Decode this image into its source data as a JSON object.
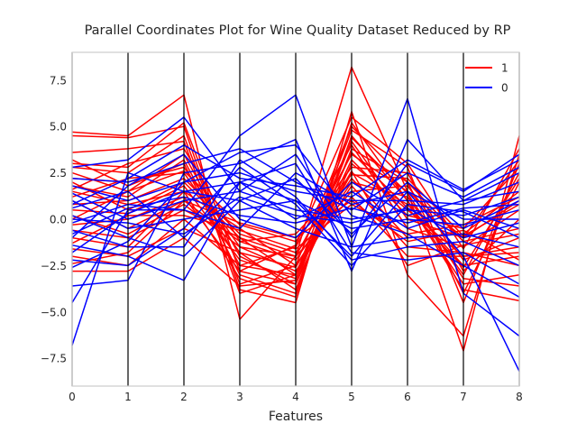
{
  "chart_data": {
    "type": "parallel-coordinates",
    "title": "Parallel Coordinates Plot for Wine Quality Dataset Reduced by RP",
    "xlabel": "Features",
    "ylabel": "",
    "x": [
      0,
      1,
      2,
      3,
      4,
      5,
      6,
      7,
      8
    ],
    "xlim": [
      0,
      8
    ],
    "ylim": [
      -9,
      9
    ],
    "xticks": [
      "0",
      "1",
      "2",
      "3",
      "4",
      "5",
      "6",
      "7",
      "8"
    ],
    "yticks": [
      7.5,
      5.0,
      2.5,
      0.0,
      -2.5,
      -5.0,
      -7.5
    ],
    "ytick_labels": [
      "7.5",
      "5.0",
      "2.5",
      "0.0",
      "−2.5",
      "−5.0",
      "−7.5"
    ],
    "grid": "vertical axes only",
    "legend_position": "top-right",
    "series": [
      {
        "name": "1",
        "color": "#ff0000",
        "lines": [
          [
            4.7,
            4.5,
            6.7,
            -5.4,
            -2.0,
            8.2,
            1.5,
            -7.1,
            4.5
          ],
          [
            4.5,
            4.4,
            5.0,
            -3.8,
            -4.5,
            5.8,
            -3.0,
            -6.3,
            3.5
          ],
          [
            3.6,
            3.8,
            4.2,
            -4.0,
            -3.0,
            4.8,
            2.8,
            -4.5,
            3.0
          ],
          [
            3.2,
            1.8,
            3.0,
            -3.0,
            -4.0,
            4.5,
            1.0,
            -3.8,
            -4.4
          ],
          [
            2.8,
            2.5,
            4.5,
            -3.5,
            -2.5,
            5.0,
            2.0,
            -4.0,
            2.0
          ],
          [
            2.5,
            1.5,
            3.5,
            -2.0,
            -3.5,
            3.0,
            0.5,
            -2.0,
            -1.5
          ],
          [
            2.2,
            2.0,
            2.8,
            -1.5,
            -2.0,
            3.5,
            1.5,
            -1.0,
            1.0
          ],
          [
            2.0,
            0.5,
            2.0,
            -1.0,
            -3.0,
            2.5,
            0.8,
            -2.5,
            -2.0
          ],
          [
            1.8,
            1.2,
            3.2,
            -2.5,
            -1.5,
            4.0,
            -0.5,
            -1.5,
            0.5
          ],
          [
            1.5,
            0.8,
            1.5,
            -0.5,
            -2.5,
            2.0,
            1.2,
            -3.0,
            2.5
          ],
          [
            1.2,
            2.2,
            2.5,
            -1.8,
            -3.8,
            3.8,
            2.0,
            -1.2,
            -0.5
          ],
          [
            1.0,
            -0.5,
            1.0,
            -1.2,
            -2.2,
            2.2,
            -1.0,
            -0.8,
            1.5
          ],
          [
            0.8,
            1.0,
            2.2,
            -0.8,
            -1.8,
            1.5,
            1.8,
            -2.2,
            -1.0
          ],
          [
            0.5,
            0.3,
            1.8,
            -2.2,
            -3.2,
            3.2,
            0.2,
            -0.5,
            2.8
          ],
          [
            0.2,
            -0.8,
            0.8,
            -1.5,
            -2.8,
            1.8,
            -1.5,
            -1.8,
            -2.5
          ],
          [
            0.0,
            1.5,
            2.6,
            -0.3,
            -1.2,
            2.8,
            2.5,
            -2.8,
            0.0
          ],
          [
            -0.3,
            0.0,
            1.2,
            -2.8,
            -3.5,
            4.2,
            0.0,
            -1.0,
            3.2
          ],
          [
            -0.6,
            -1.0,
            0.5,
            -1.0,
            -2.0,
            1.2,
            -2.0,
            -2.0,
            -1.8
          ],
          [
            -1.0,
            -1.5,
            1.5,
            -3.2,
            -4.2,
            5.2,
            1.0,
            -3.5,
            -3.0
          ],
          [
            -1.3,
            0.2,
            0.2,
            -0.6,
            -1.6,
            0.8,
            -0.8,
            -0.3,
            1.2
          ],
          [
            -1.6,
            -2.0,
            -0.5,
            -1.8,
            -2.6,
            2.6,
            -2.5,
            -1.4,
            -0.8
          ],
          [
            -2.0,
            -2.5,
            0.0,
            -2.5,
            -3.0,
            3.6,
            0.6,
            -2.6,
            2.2
          ],
          [
            -2.4,
            -1.8,
            1.0,
            -0.2,
            -1.0,
            1.0,
            -1.2,
            -0.6,
            -2.2
          ],
          [
            -2.8,
            -2.8,
            -1.0,
            -3.6,
            -3.3,
            4.4,
            1.4,
            -3.2,
            -3.6
          ],
          [
            3.0,
            2.8,
            5.2,
            -2.8,
            -1.4,
            5.5,
            3.0,
            -1.6,
            3.8
          ],
          [
            1.6,
            3.0,
            3.8,
            -1.2,
            -0.8,
            2.4,
            2.2,
            -0.9,
            0.8
          ]
        ]
      },
      {
        "name": "0",
        "color": "#0000ff",
        "lines": [
          [
            -6.8,
            2.5,
            1.5,
            2.0,
            1.0,
            -2.0,
            1.5,
            -2.0,
            -8.2
          ],
          [
            -4.5,
            0.5,
            0.5,
            4.5,
            6.7,
            -1.5,
            6.5,
            -4.0,
            -6.3
          ],
          [
            -3.6,
            -3.3,
            2.5,
            3.0,
            4.3,
            -2.8,
            4.3,
            1.0,
            1.5
          ],
          [
            2.8,
            3.2,
            5.5,
            1.5,
            3.5,
            -1.0,
            3.0,
            1.5,
            3.5
          ],
          [
            2.2,
            2.0,
            3.0,
            3.8,
            2.0,
            0.5,
            2.5,
            1.2,
            2.8
          ],
          [
            1.8,
            1.0,
            2.0,
            2.5,
            1.5,
            1.0,
            1.0,
            0.8,
            2.0
          ],
          [
            1.4,
            0.0,
            1.0,
            1.5,
            0.5,
            0.0,
            0.5,
            0.2,
            1.2
          ],
          [
            1.0,
            -0.5,
            0.0,
            0.5,
            1.0,
            -0.5,
            0.0,
            -0.3,
            0.5
          ],
          [
            0.6,
            1.5,
            -1.0,
            2.0,
            0.0,
            1.5,
            -0.5,
            0.5,
            -0.5
          ],
          [
            0.2,
            -1.0,
            -2.0,
            1.0,
            -0.5,
            -1.5,
            -1.0,
            -0.8,
            -1.5
          ],
          [
            -0.2,
            0.8,
            0.5,
            -0.5,
            2.5,
            0.8,
            1.5,
            0.0,
            0.0
          ],
          [
            -0.6,
            -1.5,
            -1.5,
            3.2,
            1.2,
            -2.2,
            -1.5,
            -1.2,
            -2.5
          ],
          [
            -1.0,
            1.8,
            3.5,
            0.0,
            -1.0,
            2.0,
            0.2,
            1.0,
            2.5
          ],
          [
            -1.4,
            -2.0,
            -3.3,
            2.0,
            3.0,
            -1.8,
            -2.2,
            -1.8,
            -3.5
          ],
          [
            -1.8,
            0.3,
            1.5,
            1.0,
            2.2,
            -0.8,
            2.0,
            -0.5,
            1.0
          ],
          [
            -2.2,
            -2.5,
            -0.5,
            2.8,
            0.8,
            -2.5,
            0.8,
            0.4,
            -1.0
          ],
          [
            -2.6,
            -1.2,
            2.0,
            3.6,
            4.0,
            0.2,
            -0.8,
            -2.5,
            -4.2
          ],
          [
            0.8,
            2.2,
            4.0,
            2.2,
            1.8,
            1.2,
            3.2,
            1.6,
            3.2
          ],
          [
            0.0,
            -0.2,
            -0.8,
            1.2,
            0.2,
            -0.2,
            0.6,
            -1.0,
            -0.2
          ],
          [
            -0.8,
            0.6,
            1.2,
            0.2,
            -0.2,
            0.6,
            -0.2,
            0.6,
            0.8
          ]
        ]
      }
    ]
  }
}
